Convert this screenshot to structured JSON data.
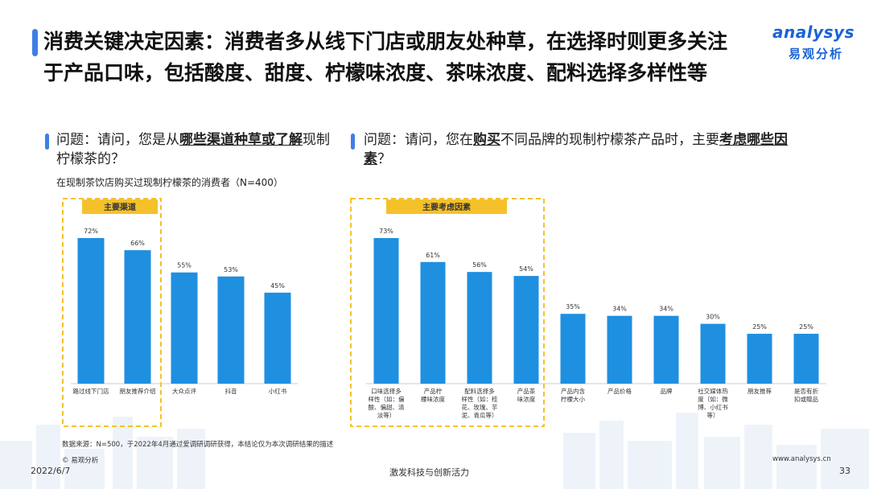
{
  "slide": {
    "title": "消费关键决定因素：消费者多从线下门店或朋友处种草，在选择时则更多关注于产品口味，包括酸度、甜度、柠檬味浓度、茶味浓度、配料选择多样性等",
    "logo": {
      "brand": "analysys",
      "brand_cn": "易观分析"
    },
    "accent_color": "#3f7ee8",
    "bar_color": "#1f8fe0",
    "highlight_color": "#f5c12b",
    "watermark": "analysys 易观分析"
  },
  "left": {
    "question_prefix": "问题：请问，您是从",
    "question_emphasis": "哪些渠道种草或了解",
    "question_suffix": "现制柠檬茶的？",
    "subtitle": "在现制茶饮店购买过现制柠檬茶的消费者（N=400）"
  },
  "right": {
    "question_prefix": "问题：请问，您在",
    "question_emphasis1": "购买",
    "question_middle": "不同品牌的现制柠檬茶产品时，主要",
    "question_emphasis2": "考虑哪些因素",
    "question_suffix": "？"
  },
  "chart_data": [
    {
      "type": "bar",
      "highlight_label": "主要渠道",
      "highlight_count": 2,
      "categories": [
        "路过线下门店",
        "朋友推荐介绍",
        "大众点评",
        "抖音",
        "小红书"
      ],
      "values": [
        72,
        66,
        55,
        53,
        45
      ],
      "value_labels": [
        "72%",
        "66%",
        "55%",
        "53%",
        "45%"
      ],
      "ylim": [
        0,
        80
      ]
    },
    {
      "type": "bar",
      "highlight_label": "主要考虑因素",
      "highlight_count": 4,
      "categories": [
        "口味选择多样性（如：偏酸、偏甜、清淡等）",
        "产品柠檬味浓度",
        "配料选择多样性（如：桂花、玫瑰、芋泥、青瓜等）",
        "产品茶味浓度",
        "产品内含柠檬大小",
        "产品价格",
        "品牌",
        "社交媒体热度（如：微博、小红书等）",
        "朋友推荐",
        "是否有折扣或赠品"
      ],
      "category_lines": [
        [
          "口味选择多",
          "样性（如：偏",
          "酸、偏甜、清",
          "淡等）"
        ],
        [
          "产品柠",
          "檬味浓度"
        ],
        [
          "配料选择多",
          "样性（如：桂",
          "花、玫瑰、芋",
          "泥、青瓜等）"
        ],
        [
          "产品茶",
          "味浓度"
        ],
        [
          "产品内含",
          "柠檬大小"
        ],
        [
          "产品价格"
        ],
        [
          "品牌"
        ],
        [
          "社交媒体热",
          "度（如：微",
          "博、小红书",
          "等）"
        ],
        [
          "朋友推荐"
        ],
        [
          "是否有折",
          "扣或赠品"
        ]
      ],
      "values": [
        73,
        61,
        56,
        54,
        35,
        34,
        34,
        30,
        25,
        25
      ],
      "value_labels": [
        "73%",
        "61%",
        "56%",
        "54%",
        "35%",
        "34%",
        "34%",
        "30%",
        "25%",
        "25%"
      ],
      "ylim": [
        0,
        80
      ]
    }
  ],
  "footer": {
    "source": "数据来源：N=500，于2022年4月通过爱调研调研获得，本结论仅为本次调研结果的描述",
    "copyright": "© 易观分析",
    "website": "www.analysys.cn",
    "date": "2022/6/7",
    "slogan": "激发科技与创新活力",
    "page": "33"
  }
}
